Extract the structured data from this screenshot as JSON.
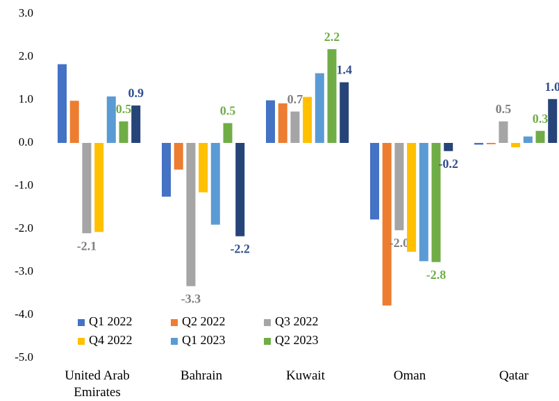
{
  "chart_data": {
    "type": "bar",
    "categories": [
      "United Arab Emirates",
      "Bahrain",
      "Kuwait",
      "Oman",
      "Qatar"
    ],
    "series": [
      {
        "name": "Q1 2022",
        "color": "#4472c4",
        "values": [
          1.83,
          -1.25,
          0.99,
          -1.78,
          -0.04
        ]
      },
      {
        "name": "Q2 2022",
        "color": "#ed7d31",
        "values": [
          0.98,
          -0.62,
          0.92,
          -3.78,
          -0.03
        ]
      },
      {
        "name": "Q3 2022",
        "color": "#a5a5a5",
        "label_color": "#7f7f7f",
        "values": [
          -2.1,
          -3.33,
          0.73,
          -2.03,
          0.5
        ],
        "value_labels": [
          "-2.1",
          "-3.3",
          "0.7",
          "-2.0",
          "0.5"
        ]
      },
      {
        "name": "Q4 2022",
        "color": "#ffc000",
        "values": [
          -2.07,
          -1.15,
          1.07,
          -2.53,
          -0.1
        ]
      },
      {
        "name": "Q1 2023",
        "color": "#5b9bd5",
        "values": [
          1.08,
          -1.9,
          1.62,
          -2.75,
          0.15
        ]
      },
      {
        "name": "Q2 2023",
        "color": "#70ad47",
        "label_color": "#70ad47",
        "values": [
          0.5,
          0.46,
          2.18,
          -2.77,
          0.28
        ],
        "value_labels": [
          "0.5",
          "0.5",
          "2.2",
          "-2.8",
          "0.3"
        ]
      },
      {
        "color": "#264478",
        "label_color": "#2f4e8f",
        "values": [
          0.87,
          -2.17,
          1.41,
          -0.19,
          1.02
        ],
        "value_labels": [
          "0.9",
          "-2.2",
          "1.4",
          "-0.2",
          "1.0"
        ]
      }
    ],
    "ylim": [
      -5,
      3
    ],
    "yticks": [
      {
        "value": -5,
        "label": "-5.0"
      },
      {
        "value": -4,
        "label": "-4.0"
      },
      {
        "value": -3,
        "label": "-3.0"
      },
      {
        "value": -2,
        "label": "-2.0"
      },
      {
        "value": -1,
        "label": "-1.0"
      },
      {
        "value": 0,
        "label": "0.0"
      },
      {
        "value": 1,
        "label": "1.0"
      },
      {
        "value": 2,
        "label": "2.0"
      },
      {
        "value": 3,
        "label": "3.0"
      }
    ],
    "grid": false
  }
}
